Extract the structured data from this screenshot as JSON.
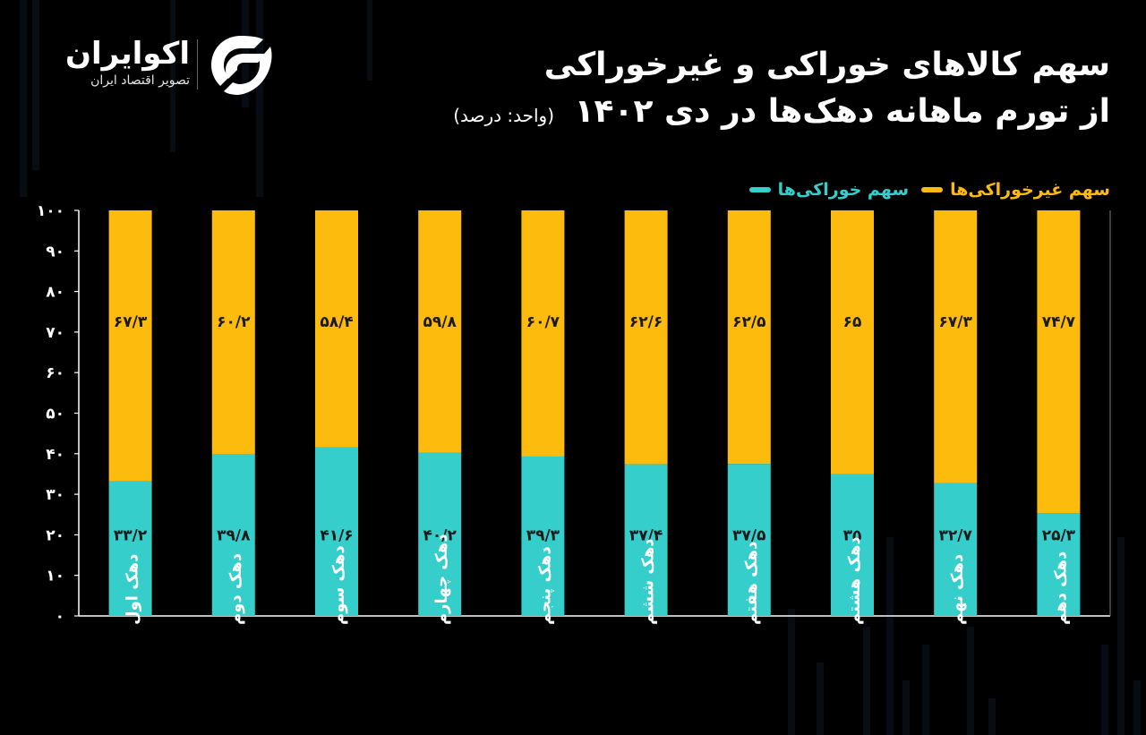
{
  "logo": {
    "name": "اکوایران",
    "tagline": "تصویر اقتصاد ایران"
  },
  "header": {
    "title_line1": "سهم کالاهای خوراکی و غیرخوراکی",
    "title_line2": "از تورم ماهانه دهک‌ها در دی ۱۴۰۲",
    "unit": "(واحد: درصد)"
  },
  "colors": {
    "nonfood": "#FDBB0E",
    "food": "#36CECB",
    "background": "#000000",
    "axis": "#FFFFFF"
  },
  "chart_data": {
    "type": "bar",
    "stacked": true,
    "categories": [
      "دهک اول",
      "دهک دوم",
      "دهک سوم",
      "دهک چهارم",
      "دهک پنجم",
      "دهک ششم",
      "دهک هفتم",
      "دهک هشتم",
      "دهک نهم",
      "دهک دهم"
    ],
    "series": [
      {
        "name": "سهم خوراکی‌ها",
        "color": "#36CECB",
        "values": [
          33.2,
          39.8,
          41.6,
          40.2,
          39.3,
          37.4,
          37.5,
          35,
          32.7,
          25.3
        ],
        "labels": [
          "۳۳/۲",
          "۳۹/۸",
          "۴۱/۶",
          "۴۰/۲",
          "۳۹/۳",
          "۳۷/۴",
          "۳۷/۵",
          "۳۵",
          "۳۲/۷",
          "۲۵/۳"
        ]
      },
      {
        "name": "سهم غیرخوراکی‌ها",
        "color": "#FDBB0E",
        "values": [
          67.3,
          60.2,
          58.4,
          59.8,
          60.7,
          62.6,
          62.5,
          65,
          67.3,
          74.7
        ],
        "labels": [
          "۶۷/۳",
          "۶۰/۲",
          "۵۸/۴",
          "۵۹/۸",
          "۶۰/۷",
          "۶۲/۶",
          "۶۲/۵",
          "۶۵",
          "۶۷/۳",
          "۷۴/۷"
        ]
      }
    ],
    "ylim": [
      0,
      100
    ],
    "yticks": [
      0,
      10,
      20,
      30,
      40,
      50,
      60,
      70,
      80,
      90,
      100
    ],
    "ytick_labels": [
      "۰",
      "۱۰",
      "۲۰",
      "۳۰",
      "۴۰",
      "۵۰",
      "۶۰",
      "۷۰",
      "۸۰",
      "۹۰",
      "۱۰۰"
    ],
    "grid": false,
    "legend_position": "top-right"
  }
}
